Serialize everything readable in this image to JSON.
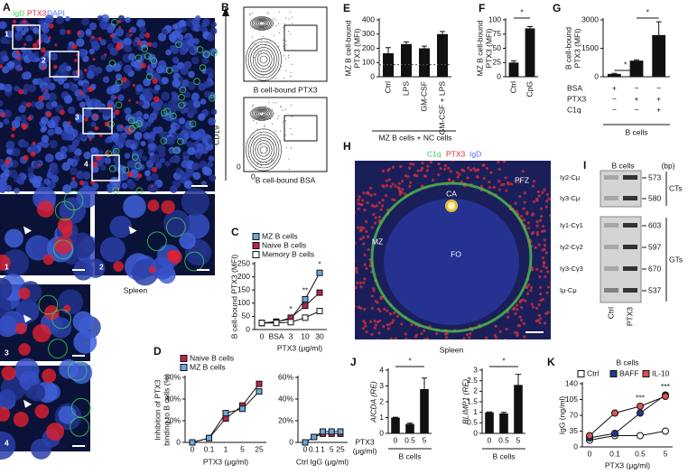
{
  "panel_labels": [
    "A",
    "B",
    "C",
    "D",
    "E",
    "F",
    "G",
    "H",
    "I",
    "J",
    "K"
  ],
  "panel_a": {
    "stain_labels": [
      "IgD",
      "PTX3",
      "DAPI"
    ],
    "region_labels": [
      "1",
      "2",
      "3",
      "4"
    ],
    "inset_labels": [
      "1",
      "2",
      "3",
      "4"
    ],
    "caption": "Spleen"
  },
  "panel_b": {
    "y_axis": "CD19",
    "x_axes": [
      "B cell-bound PTX3",
      "B cell-bound BSA"
    ],
    "zero_labels": [
      "0",
      "0"
    ]
  },
  "panel_h": {
    "stain_labels": [
      "C1q",
      "PTX3",
      "IgD"
    ],
    "region_labels": [
      "CA",
      "PFZ",
      "MZ",
      "FO"
    ],
    "caption": "Spleen"
  },
  "panel_i": {
    "group": "B cells",
    "unit": "(bp)",
    "rows": [
      {
        "label": "Iγ2-Cμ",
        "size": 573
      },
      {
        "label": "Iγ3-Cμ",
        "size": 580
      },
      {
        "label": "Iγ1-Cγ1",
        "size": 603
      },
      {
        "label": "Iγ2-Cγ2",
        "size": 597
      },
      {
        "label": "Iγ3-Cγ3",
        "size": 670
      },
      {
        "label": "Iμ-Cμ",
        "size": 537
      }
    ],
    "brackets": [
      "CTs",
      "GTs"
    ],
    "lanes": [
      "Ctrl",
      "PTX3"
    ]
  },
  "chart_data": [
    {
      "type": "bar",
      "y_label": [
        "MZ B cell-bound",
        "PTX3 (MFI)"
      ],
      "categories": [
        "Ctrl",
        "LPS",
        "GM-CSF",
        "GM-CSF + LPS"
      ],
      "values": [
        165,
        230,
        200,
        300
      ],
      "errors": [
        40,
        15,
        15,
        18
      ],
      "reference_line": 85,
      "color": "#111111",
      "ylim": [
        0,
        400
      ],
      "yticks": [
        0,
        100,
        200,
        300,
        400
      ],
      "x_label": [
        "MZ B cells + NC cells"
      ]
    },
    {
      "type": "bar",
      "y_label": [
        "MZ B cell-bound",
        "PTX3 (MFI)"
      ],
      "categories": [
        "Ctrl",
        "CpG"
      ],
      "values": [
        25,
        85
      ],
      "errors": [
        3,
        3
      ],
      "color": "#111111",
      "ylim": [
        0,
        100
      ],
      "yticks": [
        0,
        25,
        50,
        75,
        100
      ],
      "significance": [
        "*"
      ]
    },
    {
      "type": "bar",
      "y_label": [
        "B cell-bound",
        "PTX3 (MFI)"
      ],
      "categories": [
        null,
        null,
        null
      ],
      "values": [
        150,
        850,
        2200
      ],
      "errors": [
        30,
        40,
        700
      ],
      "color": "#111111",
      "ylim": [
        0,
        3000
      ],
      "yticks": [
        0,
        1500,
        3000
      ],
      "significance": [
        "*",
        "*"
      ],
      "conditions": [
        {
          "name": "BSA",
          "marks": [
            "+",
            "−",
            "−"
          ]
        },
        {
          "name": "PTX3",
          "marks": [
            "−",
            "+",
            "+"
          ]
        },
        {
          "name": "C1q",
          "marks": [
            "−",
            "−",
            "+"
          ]
        }
      ],
      "group_label": "B cells"
    },
    {
      "type": "line",
      "y_label": [
        "B cell-bound PTX3 (MFI)"
      ],
      "categories": [
        "0",
        "BSA",
        "3",
        "10",
        "30"
      ],
      "x_label": [
        "PTX3 (μg/ml)"
      ],
      "marker": "square",
      "ylim": [
        0,
        250
      ],
      "yticks": [
        0,
        50,
        100,
        150,
        200,
        250
      ],
      "significance": [
        "*",
        "**",
        "*"
      ],
      "series": [
        {
          "name": "MZ B cells",
          "color": "#6aa9e0",
          "values": [
            25,
            30,
            40,
            115,
            215
          ]
        },
        {
          "name": "Naive B cells",
          "color": "#b5284a",
          "values": [
            25,
            28,
            45,
            90,
            140
          ]
        },
        {
          "name": "Memory B cells",
          "color": "#ffffff",
          "values": [
            25,
            25,
            28,
            45,
            70
          ]
        }
      ]
    },
    {
      "type": "line",
      "y_label": [
        "Inhibition of PTX3",
        "binding to B cells (%)"
      ],
      "categories": [
        "0",
        "0.1",
        "1",
        "5",
        "25"
      ],
      "x_label": [
        "PTX3 (μg/ml)"
      ],
      "marker": "square",
      "ylim": [
        0,
        60
      ],
      "yticks": [
        0,
        {
          "value": 20,
          "label": "20%"
        },
        {
          "value": 40,
          "label": "40%"
        },
        {
          "value": 60,
          "label": "60%"
        }
      ],
      "series": [
        {
          "name": "Naive B cells",
          "color": "#b5284a",
          "values": [
            0,
            4,
            22,
            34,
            54
          ]
        },
        {
          "name": "MZ B cells",
          "color": "#6aa9e0",
          "values": [
            0,
            4,
            27,
            31,
            47
          ]
        }
      ]
    },
    {
      "type": "line",
      "categories": [
        "0",
        "0.1",
        "1",
        "5",
        "25"
      ],
      "x_label": [
        "Ctrl IgG (μg/ml)"
      ],
      "marker": "square",
      "ylim": [
        0,
        60
      ],
      "yticks": [
        0,
        {
          "value": 20,
          "label": "20%"
        },
        {
          "value": 40,
          "label": "40%"
        },
        {
          "value": 60,
          "label": "60%"
        }
      ],
      "series": [
        {
          "color": "#b5284a",
          "values": [
            0,
            5,
            8,
            8,
            8
          ]
        },
        {
          "color": "#6aa9e0",
          "values": [
            0,
            5,
            10,
            10,
            10
          ]
        }
      ]
    },
    {
      "type": "bar",
      "y_label": [
        "AICDA (RE)"
      ],
      "categories": [
        "0",
        "0.5",
        "5"
      ],
      "values": [
        1,
        0.6,
        2.8
      ],
      "errors": [
        0.02,
        0.05,
        0.7
      ],
      "color": "#111111",
      "ylim": [
        0,
        4
      ],
      "yticks": [
        0,
        1,
        2,
        3,
        4
      ],
      "significance": [
        "*"
      ],
      "x_label": [
        "PTX3",
        "(μg/ml)"
      ],
      "group_label": "B cells"
    },
    {
      "type": "bar",
      "y_label": [
        "BLIMP1 (RE)"
      ],
      "categories": [
        "0",
        "0.5",
        "5"
      ],
      "values": [
        1,
        0.95,
        2.3
      ],
      "errors": [
        0.02,
        0.05,
        0.5
      ],
      "color": "#111111",
      "ylim": [
        0,
        3
      ],
      "yticks": [
        0,
        0.5,
        1,
        1.5,
        2,
        2.5,
        3
      ],
      "significance": [
        "*"
      ],
      "group_label": "B cells"
    },
    {
      "type": "line",
      "y_label": [
        "IgG (ng/ml)"
      ],
      "categories": [
        "0",
        "0.1",
        "0.5",
        "5"
      ],
      "x_label": [
        "PTX3 (μg/ml)"
      ],
      "marker": "circle",
      "ylim": [
        0,
        140
      ],
      "yticks": [
        0,
        35,
        70,
        105,
        140
      ],
      "legend_title": "B cells",
      "significance": [
        "***",
        "***"
      ],
      "series": [
        {
          "name": "Ctrl",
          "color": "#ffffff",
          "values": [
            15,
            25,
            25,
            35
          ]
        },
        {
          "name": "BAFF",
          "color": "#1f3a93",
          "values": [
            20,
            30,
            75,
            115
          ]
        },
        {
          "name": "IL-10",
          "color": "#d9534f",
          "values": [
            25,
            75,
            90,
            112
          ]
        }
      ]
    }
  ]
}
